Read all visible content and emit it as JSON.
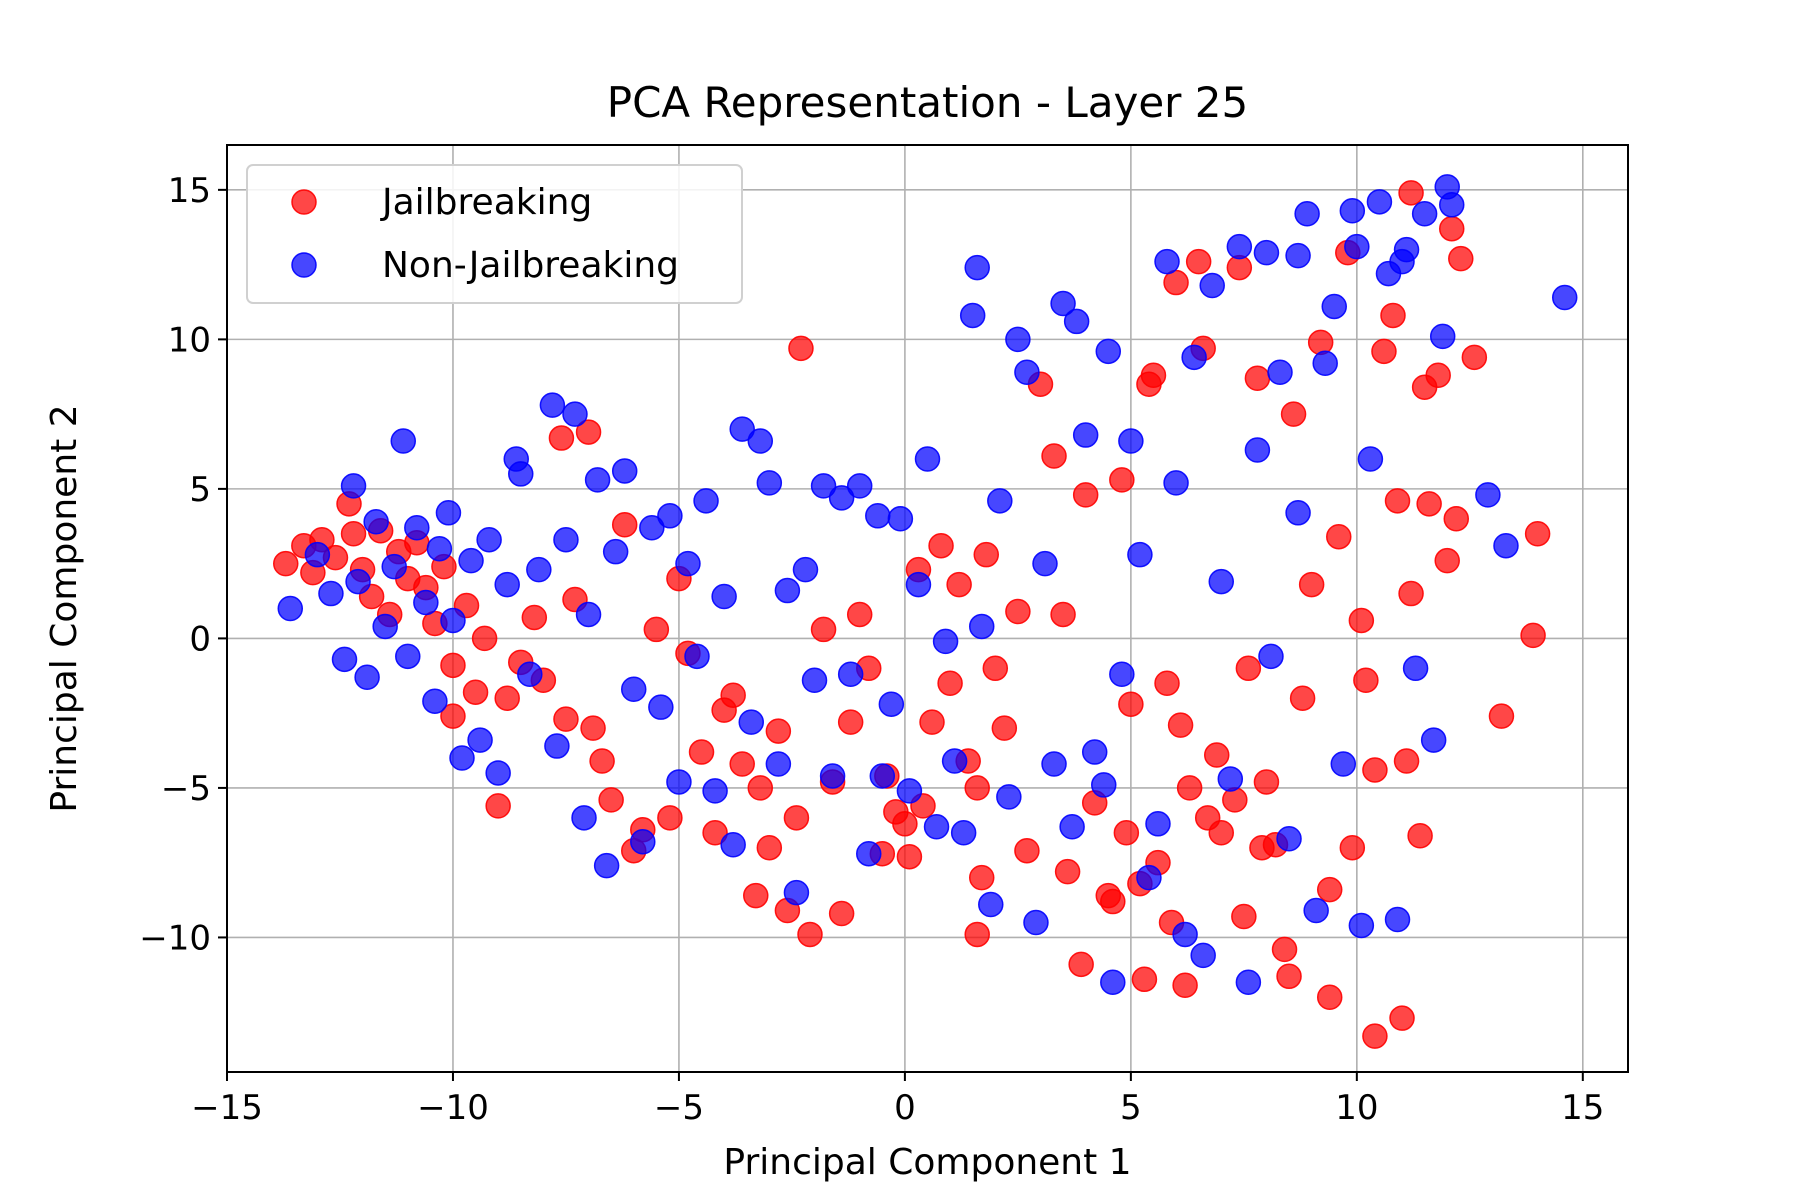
{
  "chart_data": {
    "type": "scatter",
    "title": "PCA Representation - Layer 25",
    "xlabel": "Principal Component 1",
    "ylabel": "Principal Component 2",
    "xlim": [
      -15,
      16
    ],
    "ylim": [
      -14.5,
      16.5
    ],
    "xticks": [
      -15,
      -10,
      -5,
      0,
      5,
      10,
      15
    ],
    "yticks": [
      -10,
      -5,
      0,
      5,
      10,
      15
    ],
    "xtick_labels": [
      "−15",
      "−10",
      "−5",
      "0",
      "5",
      "10",
      "15"
    ],
    "ytick_labels": [
      "−10",
      "−5",
      "0",
      "5",
      "10",
      "15"
    ],
    "grid": true,
    "legend_position": "upper-left",
    "series": [
      {
        "name": "Jailbreaking",
        "color": "#ff0000",
        "points": [
          [
            -13.7,
            2.5
          ],
          [
            -13.3,
            3.1
          ],
          [
            -13.1,
            2.2
          ],
          [
            -12.9,
            3.3
          ],
          [
            -12.6,
            2.7
          ],
          [
            -12.3,
            4.5
          ],
          [
            -12.2,
            3.5
          ],
          [
            -12.0,
            2.3
          ],
          [
            -11.8,
            1.4
          ],
          [
            -11.6,
            3.6
          ],
          [
            -11.4,
            0.8
          ],
          [
            -11.2,
            2.9
          ],
          [
            -11.0,
            2.0
          ],
          [
            -10.8,
            3.2
          ],
          [
            -10.6,
            1.7
          ],
          [
            -10.4,
            0.5
          ],
          [
            -10.2,
            2.4
          ],
          [
            -10.0,
            -0.9
          ],
          [
            -10.0,
            -2.6
          ],
          [
            -9.7,
            1.1
          ],
          [
            -9.5,
            -1.8
          ],
          [
            -9.3,
            0.0
          ],
          [
            -9.0,
            -5.6
          ],
          [
            -8.8,
            -2.0
          ],
          [
            -8.5,
            -0.8
          ],
          [
            -8.2,
            0.7
          ],
          [
            -8.0,
            -1.4
          ],
          [
            -7.6,
            6.7
          ],
          [
            -7.5,
            -2.7
          ],
          [
            -7.3,
            1.3
          ],
          [
            -7.0,
            6.9
          ],
          [
            -6.9,
            -3.0
          ],
          [
            -6.7,
            -4.1
          ],
          [
            -6.5,
            -5.4
          ],
          [
            -6.2,
            3.8
          ],
          [
            -6.0,
            -7.1
          ],
          [
            -5.8,
            -6.4
          ],
          [
            -5.5,
            0.3
          ],
          [
            -5.2,
            -6.0
          ],
          [
            -5.0,
            2.0
          ],
          [
            -4.8,
            -0.5
          ],
          [
            -4.5,
            -3.8
          ],
          [
            -4.2,
            -6.5
          ],
          [
            -4.0,
            -2.4
          ],
          [
            -3.8,
            -1.9
          ],
          [
            -3.6,
            -4.2
          ],
          [
            -3.3,
            -8.6
          ],
          [
            -3.2,
            -5.0
          ],
          [
            -3.0,
            -7.0
          ],
          [
            -2.8,
            -3.1
          ],
          [
            -2.6,
            -9.1
          ],
          [
            -2.4,
            -6.0
          ],
          [
            -2.3,
            9.7
          ],
          [
            -2.1,
            -9.9
          ],
          [
            -1.8,
            0.3
          ],
          [
            -1.6,
            -4.8
          ],
          [
            -1.4,
            -9.2
          ],
          [
            -1.2,
            -2.8
          ],
          [
            -1.0,
            0.8
          ],
          [
            -0.8,
            -1.0
          ],
          [
            -0.5,
            -7.2
          ],
          [
            -0.4,
            -4.6
          ],
          [
            -0.2,
            -5.8
          ],
          [
            0.0,
            -6.2
          ],
          [
            0.1,
            -7.3
          ],
          [
            0.3,
            2.3
          ],
          [
            0.4,
            -5.6
          ],
          [
            0.6,
            -2.8
          ],
          [
            0.8,
            3.1
          ],
          [
            1.0,
            -1.5
          ],
          [
            1.2,
            1.8
          ],
          [
            1.4,
            -4.1
          ],
          [
            1.6,
            -5.0
          ],
          [
            1.6,
            -9.9
          ],
          [
            1.7,
            -8.0
          ],
          [
            1.8,
            2.8
          ],
          [
            2.0,
            -1.0
          ],
          [
            2.2,
            -3.0
          ],
          [
            2.5,
            0.9
          ],
          [
            2.7,
            -7.1
          ],
          [
            3.0,
            8.5
          ],
          [
            3.3,
            6.1
          ],
          [
            3.5,
            0.8
          ],
          [
            3.6,
            -7.8
          ],
          [
            3.9,
            -10.9
          ],
          [
            4.0,
            4.8
          ],
          [
            4.2,
            -5.5
          ],
          [
            4.5,
            -8.6
          ],
          [
            4.6,
            -8.8
          ],
          [
            4.8,
            5.3
          ],
          [
            4.9,
            -6.5
          ],
          [
            5.0,
            -2.2
          ],
          [
            5.2,
            -8.2
          ],
          [
            5.3,
            -11.4
          ],
          [
            5.4,
            8.5
          ],
          [
            5.5,
            8.8
          ],
          [
            5.6,
            -7.5
          ],
          [
            5.8,
            -1.5
          ],
          [
            5.9,
            -9.5
          ],
          [
            6.0,
            11.9
          ],
          [
            6.1,
            -2.9
          ],
          [
            6.2,
            -11.6
          ],
          [
            6.3,
            -5.0
          ],
          [
            6.5,
            12.6
          ],
          [
            6.6,
            9.7
          ],
          [
            6.7,
            -6.0
          ],
          [
            6.9,
            -3.9
          ],
          [
            7.0,
            -6.5
          ],
          [
            7.3,
            -5.4
          ],
          [
            7.4,
            12.4
          ],
          [
            7.5,
            -9.3
          ],
          [
            7.6,
            -1.0
          ],
          [
            7.8,
            8.7
          ],
          [
            7.9,
            -7.0
          ],
          [
            8.0,
            -4.8
          ],
          [
            8.2,
            -6.9
          ],
          [
            8.4,
            -10.4
          ],
          [
            8.5,
            -11.3
          ],
          [
            8.6,
            7.5
          ],
          [
            8.8,
            -2.0
          ],
          [
            9.0,
            1.8
          ],
          [
            9.2,
            9.9
          ],
          [
            9.4,
            -8.4
          ],
          [
            9.4,
            -12.0
          ],
          [
            9.6,
            3.4
          ],
          [
            9.8,
            12.9
          ],
          [
            9.9,
            -7.0
          ],
          [
            10.1,
            0.6
          ],
          [
            10.2,
            -1.4
          ],
          [
            10.4,
            -4.4
          ],
          [
            10.4,
            -13.3
          ],
          [
            10.6,
            9.6
          ],
          [
            10.8,
            10.8
          ],
          [
            10.9,
            4.6
          ],
          [
            11.0,
            -12.7
          ],
          [
            11.1,
            -4.1
          ],
          [
            11.2,
            1.5
          ],
          [
            11.4,
            -6.6
          ],
          [
            11.5,
            8.4
          ],
          [
            11.6,
            4.5
          ],
          [
            11.8,
            8.8
          ],
          [
            12.0,
            2.6
          ],
          [
            12.1,
            13.7
          ],
          [
            12.2,
            4.0
          ],
          [
            12.3,
            12.7
          ],
          [
            12.6,
            9.4
          ],
          [
            13.2,
            -2.6
          ],
          [
            13.9,
            0.1
          ],
          [
            14.0,
            3.5
          ],
          [
            11.2,
            14.9
          ]
        ]
      },
      {
        "name": "Non-Jailbreaking",
        "color": "#0000ff",
        "points": [
          [
            -13.6,
            1.0
          ],
          [
            -13.0,
            2.8
          ],
          [
            -12.7,
            1.5
          ],
          [
            -12.4,
            -0.7
          ],
          [
            -12.2,
            5.1
          ],
          [
            -12.1,
            1.9
          ],
          [
            -11.9,
            -1.3
          ],
          [
            -11.7,
            3.9
          ],
          [
            -11.5,
            0.4
          ],
          [
            -11.3,
            2.4
          ],
          [
            -11.1,
            6.6
          ],
          [
            -11.0,
            -0.6
          ],
          [
            -10.8,
            3.7
          ],
          [
            -10.6,
            1.2
          ],
          [
            -10.4,
            -2.1
          ],
          [
            -10.3,
            3.0
          ],
          [
            -10.1,
            4.2
          ],
          [
            -10.0,
            0.6
          ],
          [
            -9.8,
            -4.0
          ],
          [
            -9.6,
            2.6
          ],
          [
            -9.4,
            -3.4
          ],
          [
            -9.2,
            3.3
          ],
          [
            -9.0,
            -4.5
          ],
          [
            -8.8,
            1.8
          ],
          [
            -8.6,
            6.0
          ],
          [
            -8.5,
            5.5
          ],
          [
            -8.3,
            -1.2
          ],
          [
            -8.1,
            2.3
          ],
          [
            -7.8,
            7.8
          ],
          [
            -7.7,
            -3.6
          ],
          [
            -7.5,
            3.3
          ],
          [
            -7.3,
            7.5
          ],
          [
            -7.1,
            -6.0
          ],
          [
            -7.0,
            0.8
          ],
          [
            -6.8,
            5.3
          ],
          [
            -6.6,
            -7.6
          ],
          [
            -6.4,
            2.9
          ],
          [
            -6.2,
            5.6
          ],
          [
            -6.0,
            -1.7
          ],
          [
            -5.8,
            -6.8
          ],
          [
            -5.6,
            3.7
          ],
          [
            -5.4,
            -2.3
          ],
          [
            -5.2,
            4.1
          ],
          [
            -5.0,
            -4.8
          ],
          [
            -4.8,
            2.5
          ],
          [
            -4.6,
            -0.6
          ],
          [
            -4.4,
            4.6
          ],
          [
            -4.2,
            -5.1
          ],
          [
            -4.0,
            1.4
          ],
          [
            -3.8,
            -6.9
          ],
          [
            -3.6,
            7.0
          ],
          [
            -3.4,
            -2.8
          ],
          [
            -3.2,
            6.6
          ],
          [
            -3.0,
            5.2
          ],
          [
            -2.8,
            -4.2
          ],
          [
            -2.6,
            1.6
          ],
          [
            -2.4,
            -8.5
          ],
          [
            -2.2,
            2.3
          ],
          [
            -2.0,
            -1.4
          ],
          [
            -1.8,
            5.1
          ],
          [
            -1.6,
            -4.6
          ],
          [
            -1.4,
            4.7
          ],
          [
            -1.2,
            -1.2
          ],
          [
            -1.0,
            5.1
          ],
          [
            -0.8,
            -7.2
          ],
          [
            -0.6,
            4.1
          ],
          [
            -0.5,
            -4.6
          ],
          [
            -0.3,
            -2.2
          ],
          [
            -0.1,
            4.0
          ],
          [
            0.1,
            -5.1
          ],
          [
            0.3,
            1.8
          ],
          [
            0.5,
            6.0
          ],
          [
            0.7,
            -6.3
          ],
          [
            0.9,
            -0.1
          ],
          [
            1.1,
            -4.1
          ],
          [
            1.3,
            -6.5
          ],
          [
            1.5,
            10.8
          ],
          [
            1.6,
            12.4
          ],
          [
            1.7,
            0.4
          ],
          [
            1.9,
            -8.9
          ],
          [
            2.1,
            4.6
          ],
          [
            2.3,
            -5.3
          ],
          [
            2.5,
            10.0
          ],
          [
            2.7,
            8.9
          ],
          [
            2.9,
            -9.5
          ],
          [
            3.1,
            2.5
          ],
          [
            3.3,
            -4.2
          ],
          [
            3.5,
            11.2
          ],
          [
            3.7,
            -6.3
          ],
          [
            3.8,
            10.6
          ],
          [
            4.0,
            6.8
          ],
          [
            4.2,
            -3.8
          ],
          [
            4.4,
            -4.9
          ],
          [
            4.5,
            9.6
          ],
          [
            4.6,
            -11.5
          ],
          [
            4.8,
            -1.2
          ],
          [
            5.0,
            6.6
          ],
          [
            5.2,
            2.8
          ],
          [
            5.4,
            -8.0
          ],
          [
            5.6,
            -6.2
          ],
          [
            5.8,
            12.6
          ],
          [
            6.0,
            5.2
          ],
          [
            6.2,
            -9.9
          ],
          [
            6.4,
            9.4
          ],
          [
            6.6,
            -10.6
          ],
          [
            6.8,
            11.8
          ],
          [
            7.0,
            1.9
          ],
          [
            7.2,
            -4.7
          ],
          [
            7.4,
            13.1
          ],
          [
            7.6,
            -11.5
          ],
          [
            7.8,
            6.3
          ],
          [
            8.0,
            12.9
          ],
          [
            8.1,
            -0.6
          ],
          [
            8.3,
            8.9
          ],
          [
            8.5,
            -6.7
          ],
          [
            8.7,
            12.8
          ],
          [
            8.9,
            14.2
          ],
          [
            9.1,
            -9.1
          ],
          [
            9.3,
            9.2
          ],
          [
            9.5,
            11.1
          ],
          [
            9.7,
            -4.2
          ],
          [
            9.9,
            14.3
          ],
          [
            10.1,
            -9.6
          ],
          [
            10.3,
            6.0
          ],
          [
            10.5,
            14.6
          ],
          [
            10.7,
            12.2
          ],
          [
            10.9,
            -9.4
          ],
          [
            11.1,
            13.0
          ],
          [
            11.3,
            -1.0
          ],
          [
            11.5,
            14.2
          ],
          [
            11.7,
            -3.4
          ],
          [
            11.9,
            10.1
          ],
          [
            12.0,
            15.1
          ],
          [
            12.1,
            14.5
          ],
          [
            12.9,
            4.8
          ],
          [
            13.3,
            3.1
          ],
          [
            14.6,
            11.4
          ],
          [
            10.0,
            13.1
          ],
          [
            11.0,
            12.6
          ],
          [
            8.7,
            4.2
          ]
        ]
      }
    ]
  }
}
